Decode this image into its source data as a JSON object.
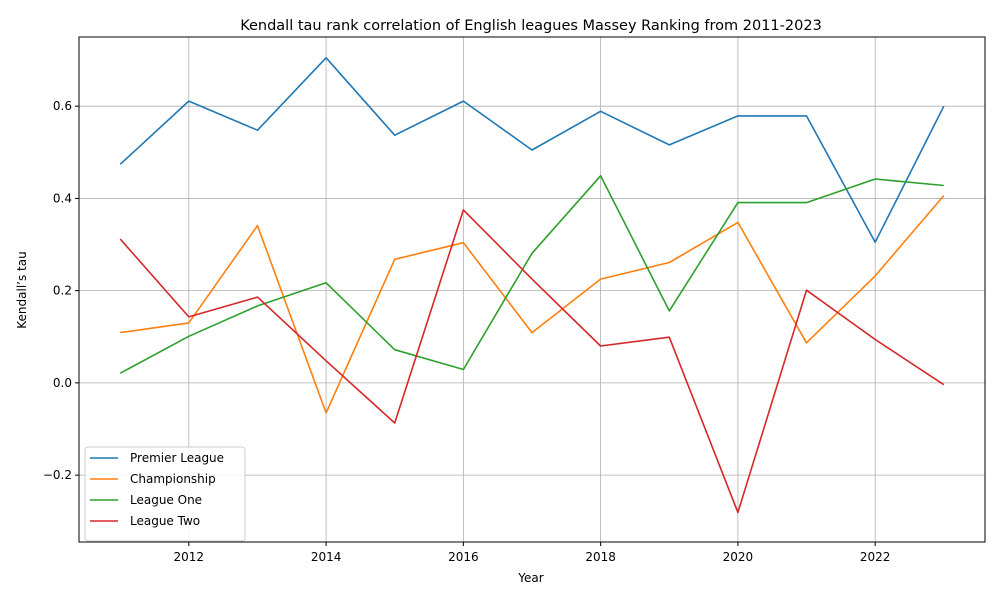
{
  "chart_data": {
    "type": "line",
    "title": "Kendall tau rank correlation of English leagues Massey Ranking from 2011-2023",
    "xlabel": "Year",
    "ylabel": "Kendall’s tau",
    "x": [
      2011,
      2012,
      2013,
      2014,
      2015,
      2016,
      2017,
      2018,
      2019,
      2020,
      2021,
      2022,
      2023
    ],
    "xlim": [
      2010.4,
      2023.6
    ],
    "ylim": [
      -0.345,
      0.75
    ],
    "xticks": [
      2012,
      2014,
      2016,
      2018,
      2020,
      2022
    ],
    "yticks": [
      -0.2,
      0.0,
      0.2,
      0.4,
      0.6
    ],
    "xtick_labels": [
      "2012",
      "2014",
      "2016",
      "2018",
      "2020",
      "2022"
    ],
    "ytick_labels": [
      "−0.2",
      "0.0",
      "0.2",
      "0.4",
      "0.6"
    ],
    "grid": true,
    "legend_position": "lower-left",
    "series": [
      {
        "name": "Premier League",
        "color": "#1f77b4",
        "values": [
          0.474,
          0.611,
          0.548,
          0.705,
          0.537,
          0.611,
          0.505,
          0.589,
          0.516,
          0.579,
          0.579,
          0.305,
          0.6
        ]
      },
      {
        "name": "Championship",
        "color": "#ff7f0e",
        "values": [
          0.109,
          0.13,
          0.341,
          -0.065,
          0.268,
          0.304,
          0.109,
          0.225,
          0.261,
          0.348,
          0.087,
          0.232,
          0.406
        ]
      },
      {
        "name": "League One",
        "color": "#2ca02c",
        "values": [
          0.021,
          0.101,
          0.167,
          0.217,
          0.072,
          0.029,
          0.281,
          0.449,
          0.156,
          0.391,
          0.391,
          0.442,
          0.428
        ]
      },
      {
        "name": "League Two",
        "color": "#d62728",
        "values": [
          0.312,
          0.143,
          0.186,
          0.048,
          -0.087,
          0.375,
          0.225,
          0.08,
          0.099,
          -0.281,
          0.201,
          0.094,
          -0.004
        ]
      }
    ]
  }
}
